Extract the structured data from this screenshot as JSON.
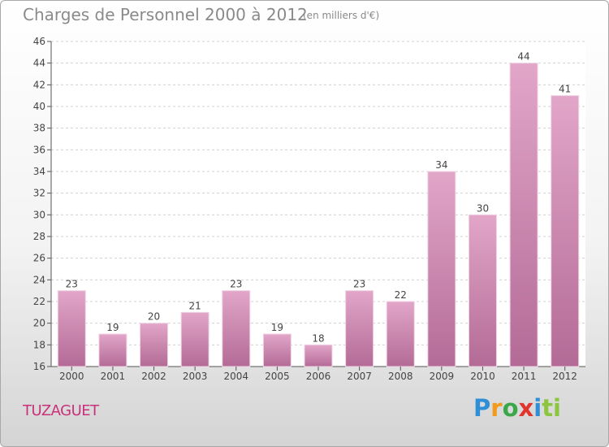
{
  "title": "Charges de Personnel 2000 à 2012",
  "subtitle": "(en milliers d'€)",
  "commune": "TUZAGUET",
  "logo": {
    "parts": [
      "P",
      "r",
      "o",
      "x",
      "i",
      "ti"
    ]
  },
  "colors": {
    "bar_top": "#e2a6c9",
    "bar_bottom": "#b36b96",
    "commune_text": "#c8327a"
  },
  "chart_data": {
    "type": "bar",
    "title": "Charges de Personnel 2000 à 2012",
    "subtitle": "(en milliers d'€)",
    "categories": [
      "2000",
      "2001",
      "2002",
      "2003",
      "2004",
      "2005",
      "2006",
      "2007",
      "2008",
      "2009",
      "2010",
      "2011",
      "2012"
    ],
    "values": [
      23,
      19,
      20,
      21,
      23,
      19,
      18,
      23,
      22,
      34,
      30,
      44,
      41
    ],
    "ylim": [
      16,
      46
    ],
    "yticks": [
      16,
      18,
      20,
      22,
      24,
      26,
      28,
      30,
      32,
      34,
      36,
      38,
      40,
      42,
      44,
      46
    ],
    "grid": true,
    "xlabel": "",
    "ylabel": ""
  }
}
